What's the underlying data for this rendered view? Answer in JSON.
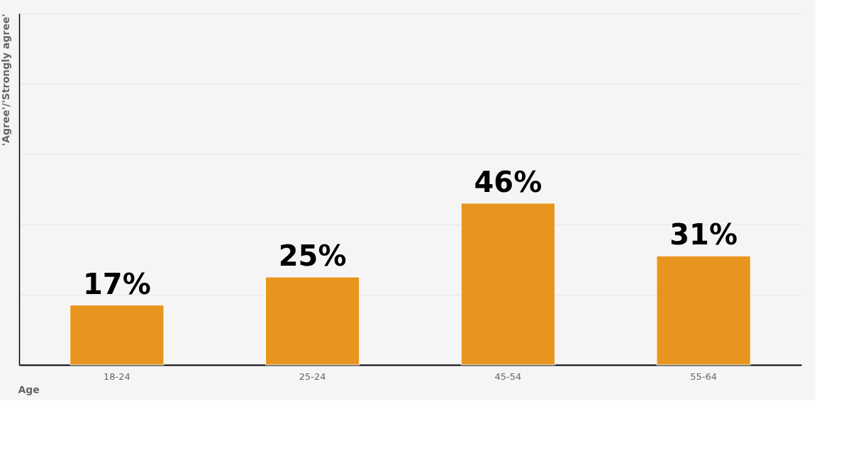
{
  "chart_data": {
    "type": "bar",
    "xlabel": "Age",
    "ylabel": "'Agree'/'Strongly agree'",
    "categories": [
      "18-24",
      "25-24",
      "45-54",
      "55-64"
    ],
    "values": [
      17,
      25,
      46,
      31
    ],
    "value_labels": [
      "17%",
      "25%",
      "46%",
      "31%"
    ],
    "color": "#e8951f",
    "ylim": [
      0,
      100
    ],
    "yticks": [
      {
        "value": 0,
        "label": null
      },
      {
        "value": 20,
        "label": null
      },
      {
        "value": 40,
        "label": null
      },
      {
        "value": 60,
        "label": null
      },
      {
        "value": 80,
        "label": null
      },
      {
        "value": 100,
        "label": null
      }
    ],
    "grid": "y",
    "tick_labels": "x"
  }
}
